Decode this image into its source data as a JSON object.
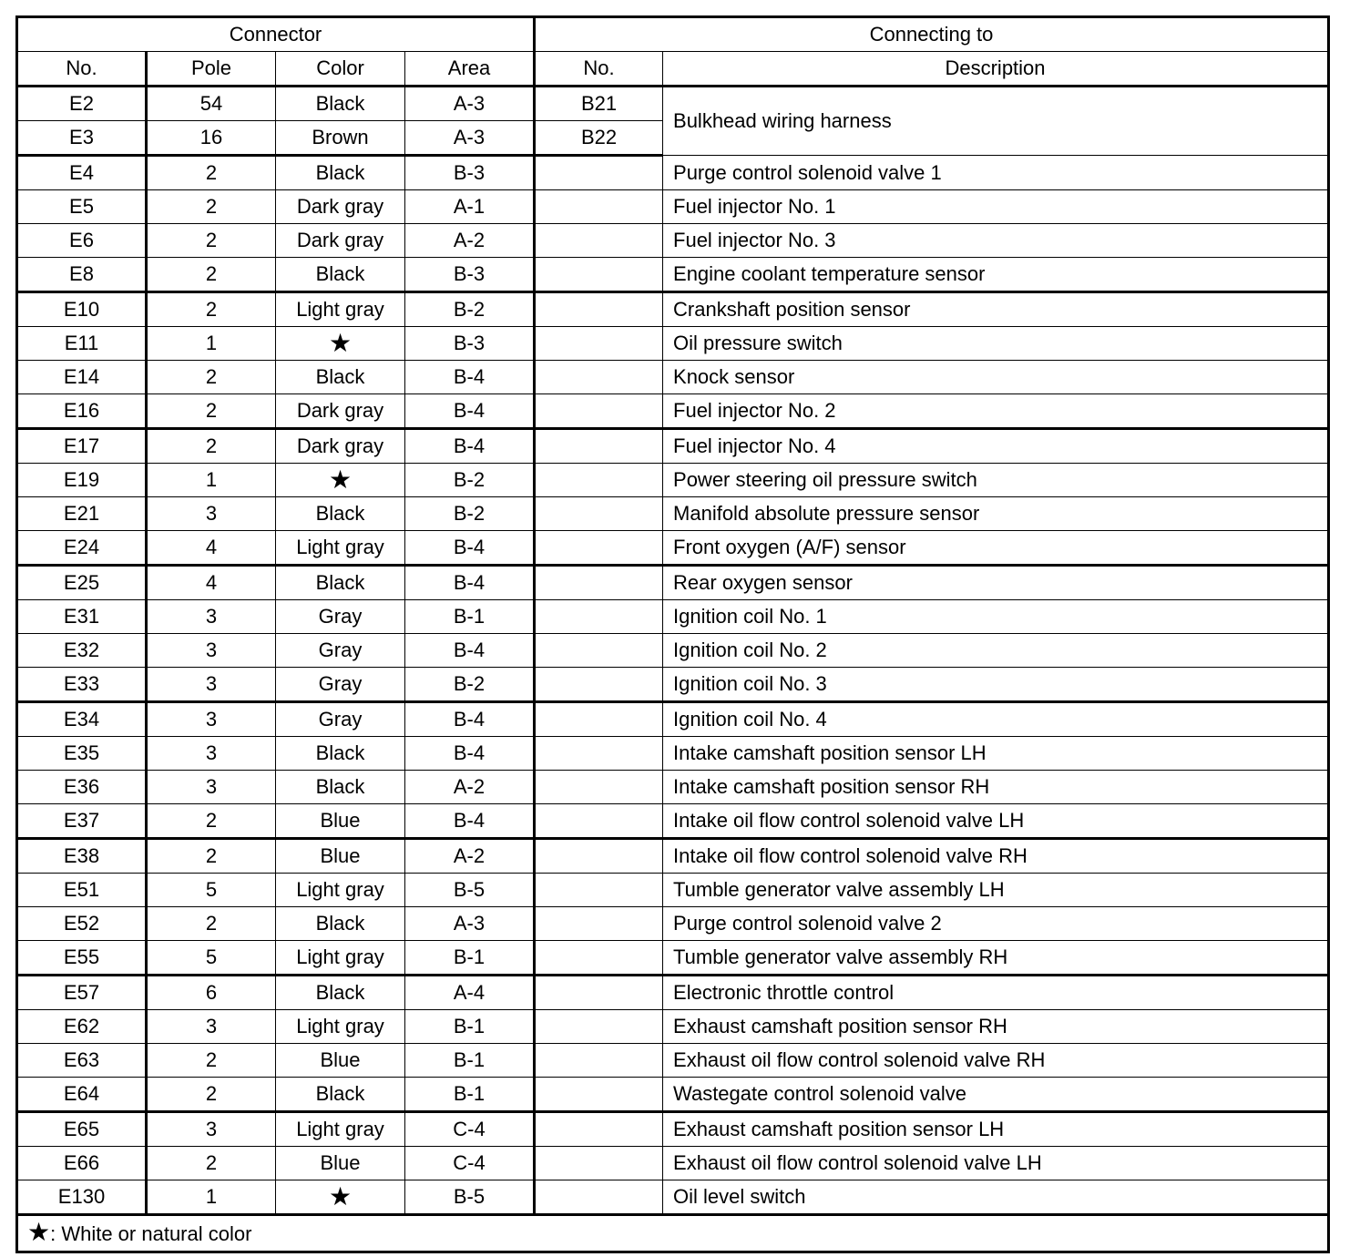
{
  "header": {
    "connector": "Connector",
    "connecting_to": "Connecting to",
    "columns": [
      "No.",
      "Pole",
      "Color",
      "Area",
      "No.",
      "Description"
    ]
  },
  "rows": [
    {
      "no": "E2",
      "pole": "54",
      "color": "Black",
      "area": "A-3",
      "to": "B21",
      "desc": "Bulkhead wiring harness"
    },
    {
      "no": "E3",
      "pole": "16",
      "color": "Brown",
      "area": "A-3",
      "to": "B22",
      "desc": ""
    },
    {
      "no": "E4",
      "pole": "2",
      "color": "Black",
      "area": "B-3",
      "to": "",
      "desc": "Purge control solenoid valve 1"
    },
    {
      "no": "E5",
      "pole": "2",
      "color": "Dark gray",
      "area": "A-1",
      "to": "",
      "desc": "Fuel injector No. 1"
    },
    {
      "no": "E6",
      "pole": "2",
      "color": "Dark gray",
      "area": "A-2",
      "to": "",
      "desc": "Fuel injector No. 3"
    },
    {
      "no": "E8",
      "pole": "2",
      "color": "Black",
      "area": "B-3",
      "to": "",
      "desc": "Engine coolant temperature sensor"
    },
    {
      "no": "E10",
      "pole": "2",
      "color": "Light gray",
      "area": "B-2",
      "to": "",
      "desc": "Crankshaft position sensor"
    },
    {
      "no": "E11",
      "pole": "1",
      "color": "★",
      "area": "B-3",
      "to": "",
      "desc": "Oil pressure switch"
    },
    {
      "no": "E14",
      "pole": "2",
      "color": "Black",
      "area": "B-4",
      "to": "",
      "desc": "Knock sensor"
    },
    {
      "no": "E16",
      "pole": "2",
      "color": "Dark gray",
      "area": "B-4",
      "to": "",
      "desc": "Fuel injector No. 2"
    },
    {
      "no": "E17",
      "pole": "2",
      "color": "Dark gray",
      "area": "B-4",
      "to": "",
      "desc": "Fuel injector No. 4"
    },
    {
      "no": "E19",
      "pole": "1",
      "color": "★",
      "area": "B-2",
      "to": "",
      "desc": "Power steering oil pressure switch"
    },
    {
      "no": "E21",
      "pole": "3",
      "color": "Black",
      "area": "B-2",
      "to": "",
      "desc": "Manifold absolute pressure sensor"
    },
    {
      "no": "E24",
      "pole": "4",
      "color": "Light gray",
      "area": "B-4",
      "to": "",
      "desc": "Front oxygen (A/F) sensor"
    },
    {
      "no": "E25",
      "pole": "4",
      "color": "Black",
      "area": "B-4",
      "to": "",
      "desc": "Rear oxygen sensor"
    },
    {
      "no": "E31",
      "pole": "3",
      "color": "Gray",
      "area": "B-1",
      "to": "",
      "desc": "Ignition coil No. 1"
    },
    {
      "no": "E32",
      "pole": "3",
      "color": "Gray",
      "area": "B-4",
      "to": "",
      "desc": "Ignition coil No. 2"
    },
    {
      "no": "E33",
      "pole": "3",
      "color": "Gray",
      "area": "B-2",
      "to": "",
      "desc": "Ignition coil No. 3"
    },
    {
      "no": "E34",
      "pole": "3",
      "color": "Gray",
      "area": "B-4",
      "to": "",
      "desc": "Ignition coil No. 4"
    },
    {
      "no": "E35",
      "pole": "3",
      "color": "Black",
      "area": "B-4",
      "to": "",
      "desc": "Intake camshaft position sensor LH"
    },
    {
      "no": "E36",
      "pole": "3",
      "color": "Black",
      "area": "A-2",
      "to": "",
      "desc": "Intake camshaft position sensor RH"
    },
    {
      "no": "E37",
      "pole": "2",
      "color": "Blue",
      "area": "B-4",
      "to": "",
      "desc": "Intake oil flow control solenoid valve LH"
    },
    {
      "no": "E38",
      "pole": "2",
      "color": "Blue",
      "area": "A-2",
      "to": "",
      "desc": "Intake oil flow control solenoid valve RH"
    },
    {
      "no": "E51",
      "pole": "5",
      "color": "Light gray",
      "area": "B-5",
      "to": "",
      "desc": "Tumble generator valve assembly LH"
    },
    {
      "no": "E52",
      "pole": "2",
      "color": "Black",
      "area": "A-3",
      "to": "",
      "desc": "Purge control solenoid valve 2"
    },
    {
      "no": "E55",
      "pole": "5",
      "color": "Light gray",
      "area": "B-1",
      "to": "",
      "desc": "Tumble generator valve assembly RH"
    },
    {
      "no": "E57",
      "pole": "6",
      "color": "Black",
      "area": "A-4",
      "to": "",
      "desc": "Electronic throttle control"
    },
    {
      "no": "E62",
      "pole": "3",
      "color": "Light gray",
      "area": "B-1",
      "to": "",
      "desc": "Exhaust camshaft position sensor RH"
    },
    {
      "no": "E63",
      "pole": "2",
      "color": "Blue",
      "area": "B-1",
      "to": "",
      "desc": "Exhaust oil flow control solenoid valve RH"
    },
    {
      "no": "E64",
      "pole": "2",
      "color": "Black",
      "area": "B-1",
      "to": "",
      "desc": "Wastegate control solenoid valve"
    },
    {
      "no": "E65",
      "pole": "3",
      "color": "Light gray",
      "area": "C-4",
      "to": "",
      "desc": "Exhaust camshaft position sensor LH"
    },
    {
      "no": "E66",
      "pole": "2",
      "color": "Blue",
      "area": "C-4",
      "to": "",
      "desc": "Exhaust oil flow control solenoid valve LH"
    },
    {
      "no": "E130",
      "pole": "1",
      "color": "★",
      "area": "B-5",
      "to": "",
      "desc": "Oil level switch"
    }
  ],
  "footer": {
    "symbol": "★",
    "note": ": White or natural color"
  }
}
